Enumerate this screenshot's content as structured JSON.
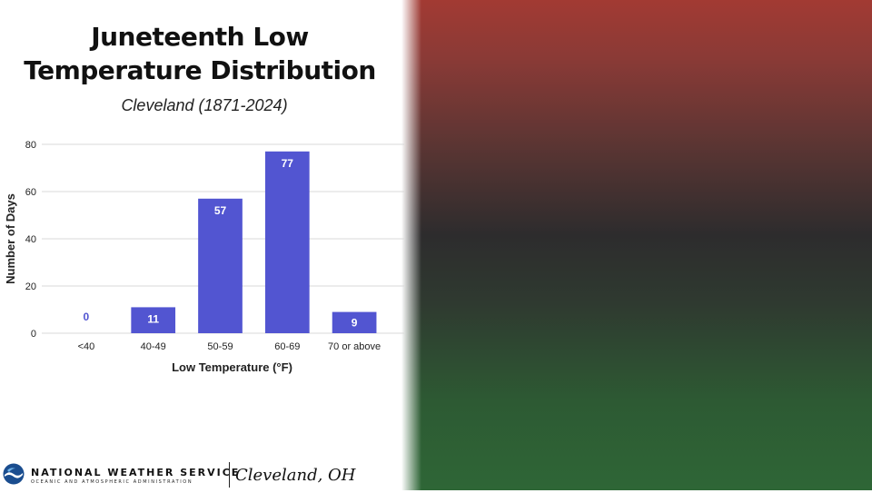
{
  "header": {
    "title_line1": "Juneteenth Low",
    "title_line2": "Temperature Distribution",
    "subtitle": "Cleveland (1871-2024)"
  },
  "chart_data": {
    "type": "bar",
    "categories": [
      "<40",
      "40-49",
      "50-59",
      "60-69",
      "70 or above"
    ],
    "values": [
      0,
      11,
      57,
      77,
      9
    ],
    "xlabel": "Low Temperature (°F)",
    "ylabel": "Number of Days",
    "ylim": [
      0,
      80
    ],
    "yticks": [
      0,
      20,
      40,
      60,
      80
    ],
    "bar_color": "#5255d1",
    "grid": true,
    "data_labels": true
  },
  "footer": {
    "agency": "NATIONAL WEATHER SERVICE",
    "agency_sub": "OCEANIC AND ATMOSPHERIC ADMINISTRATION",
    "office": "Cleveland, OH",
    "logo_icon": "noaa-logo-icon"
  },
  "colors": {
    "background_gradient_top": "#a23a33",
    "background_gradient_middle": "#2d2c2d",
    "background_gradient_bottom": "#2e6636"
  }
}
